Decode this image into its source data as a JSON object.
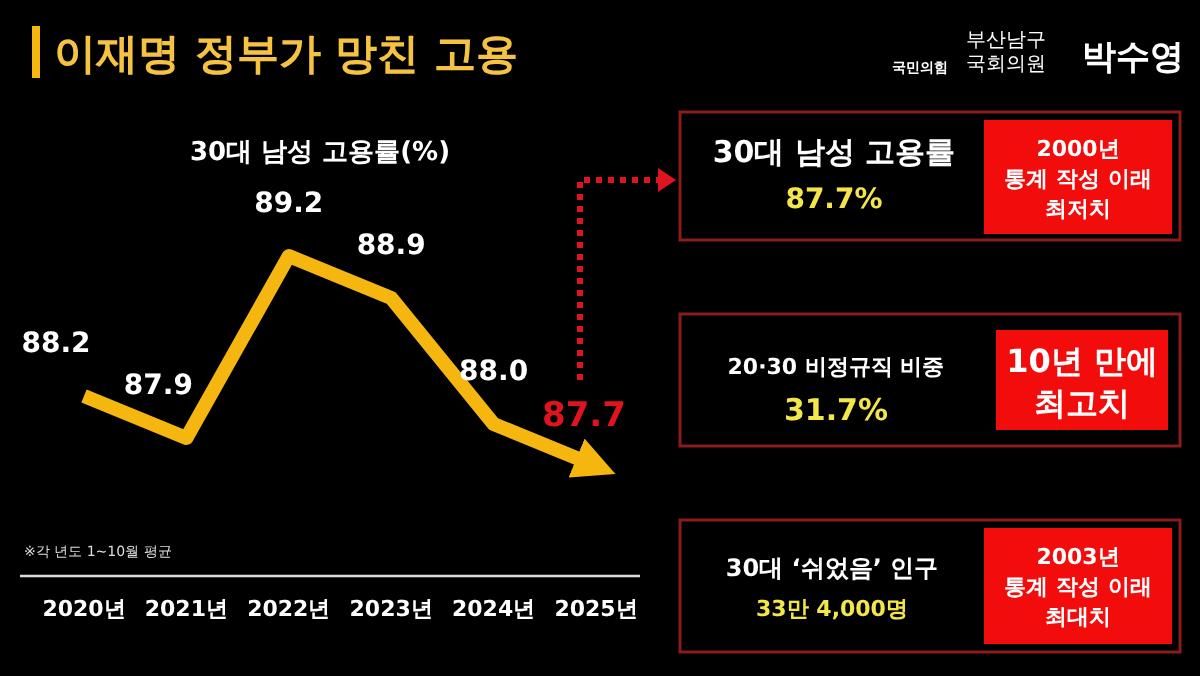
{
  "chart_data": {
    "type": "line",
    "title": "이재명 정부가 망친 고용",
    "subtitle": "30대 남성 고용률(%)",
    "categories": [
      "2020년",
      "2021년",
      "2022년",
      "2023년",
      "2024년",
      "2025년"
    ],
    "series": [
      {
        "color": "#f5b70f",
        "values": [
          88.2,
          87.9,
          89.2,
          88.9,
          88.0,
          87.7
        ],
        "value_labels": [
          "88.2",
          "87.9",
          "89.2",
          "88.9",
          "88.0",
          null
        ]
      }
    ],
    "marker": "none",
    "grid": false,
    "tick_labels": "x",
    "annotations": [
      {
        "text": "87.7",
        "x": "2025년",
        "y": 87.7
      },
      "※각 년도 1~10월 평균",
      "국민의힘",
      "부산남구\n국회의원",
      "박수영",
      "30대 남성 고용률",
      "87.7%",
      "2000년\n통계 작성 이래\n최저치",
      "20·30 비정규직 비중",
      "31.7%",
      "10년 만에\n최고치",
      "30대 ‘쉬었음’ 인구",
      "33만 4,000명",
      "2003년\n통계 작성 이래\n최대치"
    ]
  }
}
